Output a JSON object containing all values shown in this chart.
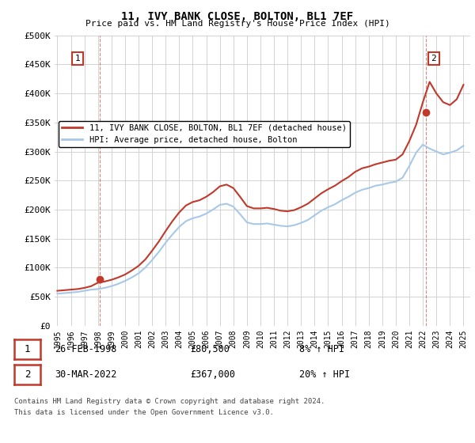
{
  "title": "11, IVY BANK CLOSE, BOLTON, BL1 7EF",
  "subtitle": "Price paid vs. HM Land Registry's House Price Index (HPI)",
  "legend_line1": "11, IVY BANK CLOSE, BOLTON, BL1 7EF (detached house)",
  "legend_line2": "HPI: Average price, detached house, Bolton",
  "sale1_label": "1",
  "sale1_date": "26-FEB-1998",
  "sale1_price": "£80,500",
  "sale1_hpi": "8% ↑ HPI",
  "sale2_label": "2",
  "sale2_date": "30-MAR-2022",
  "sale2_price": "£367,000",
  "sale2_hpi": "20% ↑ HPI",
  "footnote1": "Contains HM Land Registry data © Crown copyright and database right 2024.",
  "footnote2": "This data is licensed under the Open Government Licence v3.0.",
  "hpi_color": "#a8c8e8",
  "price_color": "#c0392b",
  "marker_color": "#c0392b",
  "grid_color": "#cccccc",
  "bg_color": "#ffffff",
  "ylim": [
    0,
    500000
  ],
  "yticks": [
    0,
    50000,
    100000,
    150000,
    200000,
    250000,
    300000,
    350000,
    400000,
    450000,
    500000
  ],
  "sale1_year": 1998.15,
  "sale1_value": 80500,
  "sale2_year": 2022.25,
  "sale2_value": 367000,
  "xmin": 1994.8,
  "xmax": 2025.5,
  "years_hpi": [
    1995,
    1995.5,
    1996,
    1996.5,
    1997,
    1997.5,
    1998,
    1998.5,
    1999,
    1999.5,
    2000,
    2000.5,
    2001,
    2001.5,
    2002,
    2002.5,
    2003,
    2003.5,
    2004,
    2004.5,
    2005,
    2005.5,
    2006,
    2006.5,
    2007,
    2007.5,
    2008,
    2008.5,
    2009,
    2009.5,
    2010,
    2010.5,
    2011,
    2011.5,
    2012,
    2012.5,
    2013,
    2013.5,
    2014,
    2014.5,
    2015,
    2015.5,
    2016,
    2016.5,
    2017,
    2017.5,
    2018,
    2018.5,
    2019,
    2019.5,
    2020,
    2020.5,
    2021,
    2021.5,
    2022,
    2022.5,
    2023,
    2023.5,
    2024,
    2024.5,
    2025
  ],
  "hpi_values": [
    55000,
    56000,
    57000,
    58000,
    60000,
    62000,
    63000,
    65000,
    68000,
    72000,
    77000,
    83000,
    90000,
    100000,
    113000,
    127000,
    143000,
    157000,
    170000,
    180000,
    185000,
    188000,
    193000,
    200000,
    208000,
    210000,
    205000,
    192000,
    178000,
    175000,
    175000,
    176000,
    174000,
    172000,
    171000,
    173000,
    177000,
    182000,
    190000,
    198000,
    204000,
    209000,
    216000,
    222000,
    229000,
    234000,
    237000,
    241000,
    243000,
    246000,
    248000,
    255000,
    275000,
    298000,
    312000,
    305000,
    300000,
    295000,
    298000,
    302000,
    310000
  ],
  "red_values": [
    60000,
    61000,
    62000,
    63000,
    65000,
    68000,
    74000,
    76000,
    79000,
    83000,
    88000,
    95000,
    103000,
    114000,
    129000,
    145000,
    163000,
    180000,
    195000,
    207000,
    213000,
    216000,
    222000,
    230000,
    240000,
    243000,
    237000,
    222000,
    206000,
    202000,
    202000,
    203000,
    201000,
    198000,
    197000,
    199000,
    204000,
    210000,
    219000,
    228000,
    235000,
    241000,
    249000,
    256000,
    265000,
    271000,
    274000,
    278000,
    281000,
    284000,
    286000,
    295000,
    318000,
    346000,
    385000,
    420000,
    400000,
    385000,
    380000,
    390000,
    415000
  ]
}
